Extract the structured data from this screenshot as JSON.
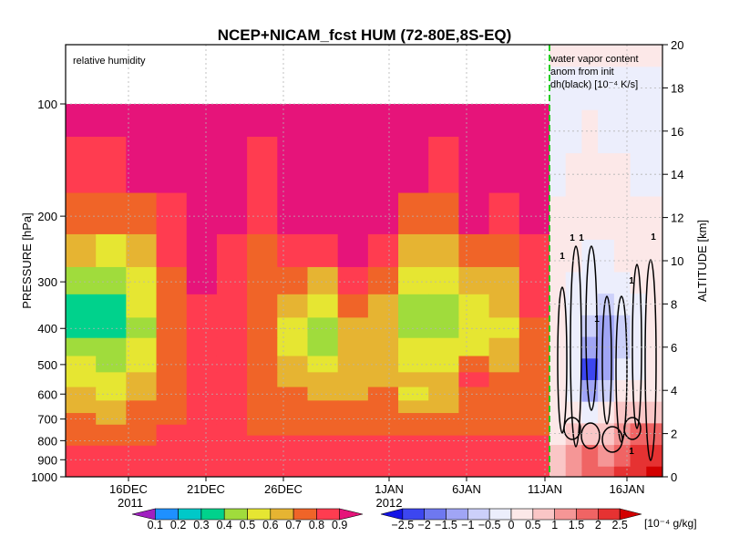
{
  "chart_data": [
    {
      "type": "heatmap",
      "title": "NCEP+NICAM_fcst HUM (72-80E,8S-EQ)",
      "panel_label": "relative humidity",
      "ylabel_left": "PRESSURE [hPa]",
      "ylabel_right": "ALTITUDE [km]",
      "y_pressure_ticks": [
        "100",
        "200",
        "300",
        "400",
        "500",
        "600",
        "700",
        "800",
        "900",
        "1000"
      ],
      "y_pressure_values": [
        100,
        200,
        300,
        400,
        500,
        600,
        700,
        800,
        900,
        1000
      ],
      "y_altitude_ticks": [
        "0",
        "2",
        "4",
        "6",
        "8",
        "10",
        "12",
        "14",
        "16",
        "18",
        "20"
      ],
      "y_altitude_values": [
        0,
        2,
        4,
        6,
        8,
        10,
        12,
        14,
        16,
        18,
        20
      ],
      "x_ticks": [
        "16DEC",
        "21DEC",
        "26DEC",
        "1JAN",
        "6JAN",
        "11JAN",
        "16JAN"
      ],
      "x_year_labels": [
        "2011",
        "2012"
      ],
      "scale": "log-pressure",
      "grid": true,
      "colorbar": {
        "levels": [
          "0.1",
          "0.2",
          "0.3",
          "0.4",
          "0.5",
          "0.6",
          "0.7",
          "0.8",
          "0.9"
        ],
        "colors": [
          "#a020c0",
          "#1e90ff",
          "#00c8c8",
          "#00d28c",
          "#a0dc3c",
          "#e6e632",
          "#e6b432",
          "#f06428",
          "#ff3c50",
          "#e6147a"
        ]
      },
      "humidity_grid": {
        "x": [
          "11DEC",
          "13DEC",
          "15DEC",
          "17DEC",
          "19DEC",
          "21DEC",
          "23DEC",
          "25DEC",
          "27DEC",
          "29DEC",
          "31DEC",
          "2JAN",
          "4JAN",
          "6JAN",
          "8JAN",
          "10JAN"
        ],
        "p": [
          100,
          150,
          200,
          250,
          300,
          350,
          400,
          450,
          500,
          550,
          600,
          650,
          700,
          750,
          800,
          850,
          900,
          950,
          1000
        ],
        "values": [
          [
            0.95,
            0.95,
            0.95,
            0.95,
            0.95,
            0.95,
            0.9,
            0.95,
            0.95,
            0.95,
            0.95,
            0.95,
            0.95,
            0.95,
            0.95,
            0.95
          ],
          [
            0.85,
            0.8,
            0.9,
            0.95,
            0.95,
            0.95,
            0.8,
            0.95,
            0.95,
            0.95,
            0.95,
            0.9,
            0.85,
            0.95,
            0.9,
            0.95
          ],
          [
            0.75,
            0.7,
            0.75,
            0.85,
            0.95,
            0.9,
            0.8,
            0.9,
            0.95,
            0.95,
            0.95,
            0.75,
            0.75,
            0.9,
            0.8,
            0.9
          ],
          [
            0.6,
            0.55,
            0.65,
            0.8,
            0.9,
            0.85,
            0.75,
            0.8,
            0.85,
            0.9,
            0.8,
            0.65,
            0.6,
            0.75,
            0.7,
            0.85
          ],
          [
            0.45,
            0.4,
            0.55,
            0.75,
            0.9,
            0.85,
            0.75,
            0.7,
            0.65,
            0.8,
            0.7,
            0.55,
            0.5,
            0.6,
            0.65,
            0.8
          ],
          [
            0.35,
            0.35,
            0.5,
            0.75,
            0.85,
            0.85,
            0.7,
            0.6,
            0.5,
            0.7,
            0.6,
            0.45,
            0.4,
            0.5,
            0.6,
            0.8
          ],
          [
            0.35,
            0.35,
            0.45,
            0.75,
            0.85,
            0.85,
            0.7,
            0.55,
            0.4,
            0.65,
            0.6,
            0.45,
            0.4,
            0.5,
            0.55,
            0.75
          ],
          [
            0.4,
            0.4,
            0.5,
            0.75,
            0.85,
            0.85,
            0.75,
            0.55,
            0.45,
            0.6,
            0.65,
            0.5,
            0.5,
            0.55,
            0.6,
            0.75
          ],
          [
            0.5,
            0.45,
            0.55,
            0.75,
            0.85,
            0.85,
            0.75,
            0.6,
            0.5,
            0.65,
            0.65,
            0.55,
            0.55,
            0.75,
            0.65,
            0.75
          ],
          [
            0.55,
            0.5,
            0.6,
            0.75,
            0.85,
            0.85,
            0.75,
            0.65,
            0.6,
            0.65,
            0.65,
            0.6,
            0.6,
            0.8,
            0.7,
            0.75
          ],
          [
            0.6,
            0.55,
            0.65,
            0.75,
            0.85,
            0.8,
            0.75,
            0.7,
            0.65,
            0.65,
            0.7,
            0.55,
            0.6,
            0.7,
            0.7,
            0.75
          ],
          [
            0.65,
            0.6,
            0.7,
            0.75,
            0.85,
            0.8,
            0.75,
            0.7,
            0.7,
            0.7,
            0.7,
            0.6,
            0.65,
            0.7,
            0.7,
            0.75
          ],
          [
            0.7,
            0.65,
            0.7,
            0.75,
            0.85,
            0.8,
            0.75,
            0.75,
            0.75,
            0.75,
            0.75,
            0.7,
            0.7,
            0.75,
            0.75,
            0.75
          ],
          [
            0.75,
            0.7,
            0.75,
            0.8,
            0.85,
            0.8,
            0.75,
            0.75,
            0.75,
            0.75,
            0.75,
            0.75,
            0.75,
            0.75,
            0.75,
            0.75
          ],
          [
            0.75,
            0.75,
            0.75,
            0.8,
            0.85,
            0.85,
            0.8,
            0.8,
            0.8,
            0.8,
            0.8,
            0.8,
            0.8,
            0.8,
            0.8,
            0.8
          ],
          [
            0.8,
            0.8,
            0.8,
            0.8,
            0.85,
            0.85,
            0.8,
            0.8,
            0.85,
            0.85,
            0.85,
            0.85,
            0.85,
            0.85,
            0.85,
            0.85
          ],
          [
            0.85,
            0.85,
            0.85,
            0.85,
            0.85,
            0.85,
            0.85,
            0.85,
            0.85,
            0.85,
            0.85,
            0.85,
            0.85,
            0.85,
            0.85,
            0.85
          ],
          [
            0.85,
            0.85,
            0.85,
            0.85,
            0.85,
            0.85,
            0.85,
            0.85,
            0.85,
            0.85,
            0.85,
            0.85,
            0.85,
            0.85,
            0.85,
            0.85
          ],
          [
            0.85,
            0.85,
            0.85,
            0.85,
            0.85,
            0.85,
            0.85,
            0.85,
            0.85,
            0.85,
            0.85,
            0.85,
            0.85,
            0.85,
            0.85,
            0.85
          ]
        ]
      }
    },
    {
      "type": "heatmap",
      "panel_label_lines": [
        "water vapor content",
        "anom from init",
        "dh(black) [10⁻⁴ K/s]"
      ],
      "contour_label": "1",
      "colorbar": {
        "levels": [
          "−2.5",
          "−2",
          "−1.5",
          "−1",
          "−0.5",
          "0",
          "0.5",
          "1",
          "1.5",
          "2",
          "2.5"
        ],
        "unit": "[10⁻⁴ g/kg]",
        "colors": [
          "#1414e6",
          "#3c46f0",
          "#6e78f0",
          "#a0a5f5",
          "#ccd0fa",
          "#eceefc",
          "#fce8e8",
          "#fac6c6",
          "#f59696",
          "#f06464",
          "#e63232",
          "#d20000"
        ]
      },
      "anomaly_grid": {
        "x": [
          "11JAN",
          "12JAN",
          "13JAN",
          "14JAN",
          "15JAN",
          "16JAN",
          "17JAN"
        ],
        "z": [
          0,
          1,
          2,
          3,
          4,
          5,
          6,
          7,
          8,
          9,
          10,
          12,
          14,
          16,
          18,
          20
        ],
        "values": [
          [
            0.8,
            1.0,
            1.5,
            1.5,
            2.0,
            2.0,
            2.5
          ],
          [
            0.6,
            1.0,
            1.5,
            1.0,
            1.5,
            2.0,
            2.0
          ],
          [
            0.4,
            0.5,
            0.5,
            0.8,
            1.0,
            1.5,
            1.5
          ],
          [
            0.2,
            0.0,
            -0.5,
            0.0,
            0.5,
            0.5,
            0.5
          ],
          [
            0.0,
            -0.5,
            -1.5,
            -1.0,
            0.0,
            0.0,
            0.0
          ],
          [
            0.0,
            -0.5,
            -2.5,
            -1.5,
            -0.5,
            -0.5,
            0.0
          ],
          [
            0.0,
            -0.5,
            -1.5,
            -1.5,
            -1.0,
            -0.5,
            0.0
          ],
          [
            0.0,
            -0.3,
            -1.0,
            -1.5,
            -1.0,
            -0.3,
            0.0
          ],
          [
            0.0,
            -0.3,
            -0.5,
            -0.7,
            -0.5,
            -0.2,
            0.0
          ],
          [
            0.0,
            -0.2,
            -0.3,
            -0.3,
            -0.3,
            0.0,
            0.0
          ],
          [
            0.0,
            0.0,
            -0.1,
            -0.2,
            0.0,
            0.0,
            0.0
          ],
          [
            0.0,
            0.0,
            0.0,
            0.1,
            0.0,
            0.0,
            0.0
          ],
          [
            -0.2,
            0.2,
            0.3,
            0.1,
            0.0,
            -0.1,
            -0.1
          ],
          [
            -0.3,
            -0.1,
            0.0,
            -0.2,
            -0.2,
            -0.2,
            -0.2
          ],
          [
            -0.2,
            -0.1,
            -0.1,
            -0.2,
            -0.2,
            -0.1,
            -0.1
          ],
          [
            0.2,
            0.2,
            0.2,
            0.2,
            0.2,
            0.2,
            0.1
          ]
        ]
      }
    }
  ]
}
